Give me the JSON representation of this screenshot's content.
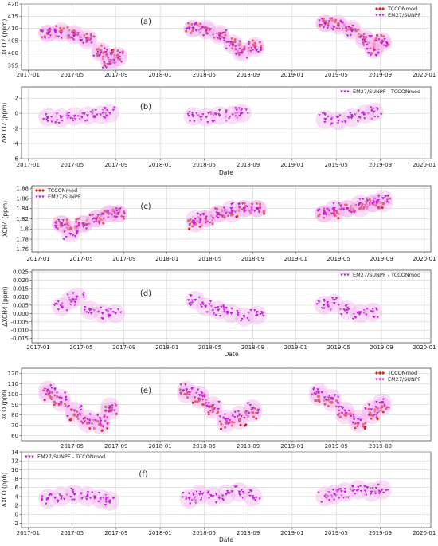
{
  "chart_data": [
    {
      "type": "scatter",
      "panel_label": "(a)",
      "ylabel": "XCO2 (ppm)",
      "xlabel": "",
      "ylim": [
        393,
        420
      ],
      "yticks": [
        395,
        400,
        405,
        410,
        415,
        420
      ],
      "xtick_labels": [
        "2017-01",
        "2017-05",
        "2017-09",
        "2018-01",
        "2018-05",
        "2018-09",
        "2019-01",
        "2019-05",
        "2019-09",
        "2020-01"
      ],
      "legend_position": "top-right",
      "series": [
        {
          "name": "TCCONmod",
          "color": "#d91c1c",
          "marker": "circle",
          "x": [
            2017.15,
            2017.25,
            2017.35,
            2017.45,
            2017.55,
            2017.62,
            2017.68,
            2018.25,
            2018.35,
            2018.45,
            2018.55,
            2018.62,
            2018.72,
            2019.25,
            2019.35,
            2019.45,
            2019.55,
            2019.62,
            2019.68
          ],
          "y": [
            408,
            409,
            408,
            406,
            401,
            397,
            399,
            410,
            410,
            408,
            404,
            401,
            403,
            412,
            412,
            410,
            406,
            402,
            405
          ]
        },
        {
          "name": "EM27/SUNPF",
          "color": "#c221d6",
          "marker": "triangle",
          "x": [
            2017.15,
            2017.25,
            2017.35,
            2017.45,
            2017.55,
            2017.62,
            2017.68,
            2018.25,
            2018.35,
            2018.45,
            2018.55,
            2018.62,
            2018.72,
            2019.25,
            2019.35,
            2019.45,
            2019.55,
            2019.62,
            2019.68
          ],
          "y": [
            408,
            408,
            407,
            405,
            400,
            396,
            398,
            410,
            409,
            407,
            403,
            400,
            402,
            412,
            411,
            409,
            405,
            401,
            404
          ]
        }
      ]
    },
    {
      "type": "scatter",
      "panel_label": "(b)",
      "ylabel": "ΔXCO2 (ppm)",
      "xlabel": "Date",
      "ylim": [
        -6,
        3.5
      ],
      "yticks": [
        -6,
        -4,
        -2,
        0,
        2
      ],
      "xtick_labels": [
        "2017-01",
        "2017-05",
        "2017-09",
        "2018-01",
        "2018-05",
        "2018-09",
        "2019-01",
        "2019-05",
        "2019-09",
        "2020-01"
      ],
      "legend_position": "top-right",
      "series": [
        {
          "name": "EM27/SUNPF - TCCONmod",
          "color": "#c221d6",
          "marker": "triangle",
          "x": [
            2017.15,
            2017.25,
            2017.35,
            2017.45,
            2017.55,
            2017.62,
            2018.25,
            2018.35,
            2018.45,
            2018.55,
            2018.62,
            2019.25,
            2019.35,
            2019.45,
            2019.55,
            2019.62
          ],
          "y": [
            -0.5,
            -0.6,
            -0.4,
            -0.3,
            -0.2,
            0.0,
            -0.4,
            -0.5,
            -0.3,
            -0.2,
            0.0,
            -0.8,
            -1.0,
            -0.6,
            -0.1,
            0.2
          ]
        }
      ]
    },
    {
      "type": "scatter",
      "panel_label": "(c)",
      "ylabel": "XCH4 (ppm)",
      "xlabel": "",
      "ylim": [
        1.755,
        1.885
      ],
      "yticks": [
        1.76,
        1.78,
        1.8,
        1.82,
        1.84,
        1.86,
        1.88
      ],
      "xtick_labels": [
        "2017-01",
        "2017-05",
        "2017-09",
        "2018-01",
        "2018-05",
        "2018-09",
        "2019-01",
        "2019-05",
        "2019-09",
        "2020-01"
      ],
      "legend_position": "top-left",
      "series": [
        {
          "name": "TCCONmod",
          "color": "#d91c1c",
          "marker": "circle",
          "x": [
            2017.18,
            2017.25,
            2017.35,
            2017.45,
            2017.55,
            2017.62,
            2018.22,
            2018.3,
            2018.4,
            2018.5,
            2018.6,
            2018.7,
            2019.22,
            2019.3,
            2019.4,
            2019.5,
            2019.6,
            2019.68
          ],
          "y": [
            1.81,
            1.8,
            1.81,
            1.82,
            1.83,
            1.83,
            1.81,
            1.82,
            1.83,
            1.83,
            1.84,
            1.84,
            1.83,
            1.83,
            1.84,
            1.84,
            1.85,
            1.85
          ]
        },
        {
          "name": "EM27/SUNPF",
          "color": "#c221d6",
          "marker": "triangle",
          "x": [
            2017.18,
            2017.25,
            2017.35,
            2017.45,
            2017.55,
            2017.62,
            2018.22,
            2018.3,
            2018.4,
            2018.5,
            2018.6,
            2018.7,
            2019.22,
            2019.3,
            2019.4,
            2019.5,
            2019.6,
            2019.68
          ],
          "y": [
            1.81,
            1.79,
            1.81,
            1.82,
            1.83,
            1.83,
            1.82,
            1.82,
            1.83,
            1.84,
            1.84,
            1.84,
            1.83,
            1.84,
            1.84,
            1.85,
            1.85,
            1.86
          ]
        }
      ]
    },
    {
      "type": "scatter",
      "panel_label": "(d)",
      "ylabel": "ΔXCH4 (ppm)",
      "xlabel": "Date",
      "ylim": [
        -0.0175,
        0.026
      ],
      "yticks": [
        -0.015,
        -0.01,
        -0.005,
        0.0,
        0.005,
        0.01,
        0.015,
        0.02,
        0.025
      ],
      "ytick_labels": [
        "-0.015",
        "-0.010",
        "-0.005",
        "0.000",
        "0.005",
        "0.010",
        "0.015",
        "0.020",
        "0.025"
      ],
      "xtick_labels": [
        "2017-01",
        "2017-05",
        "2017-09",
        "2018-01",
        "2018-05",
        "2018-09",
        "2019-01",
        "2019-05",
        "2019-09",
        "2020-01"
      ],
      "legend_position": "top-right",
      "series": [
        {
          "name": "EM27/SUNPF - TCCONmod",
          "color": "#c221d6",
          "marker": "triangle",
          "x": [
            2017.18,
            2017.25,
            2017.3,
            2017.4,
            2017.5,
            2017.6,
            2018.22,
            2018.3,
            2018.4,
            2018.5,
            2018.6,
            2018.7,
            2019.22,
            2019.3,
            2019.4,
            2019.5,
            2019.6
          ],
          "y": [
            0.004,
            0.008,
            0.01,
            0.002,
            0.0,
            0.0,
            0.008,
            0.004,
            0.002,
            0.0,
            -0.002,
            -0.001,
            0.005,
            0.006,
            0.002,
            0.0,
            0.001
          ]
        }
      ]
    },
    {
      "type": "scatter",
      "panel_label": "(e)",
      "ylabel": "XCO (ppb)",
      "xlabel": "",
      "ylim": [
        55,
        125
      ],
      "yticks": [
        60,
        70,
        80,
        90,
        100,
        110,
        120
      ],
      "xtick_labels": [
        "2017-05",
        "2017-09",
        "2018-01",
        "2018-05",
        "2018-09",
        "2019-01",
        "2019-05",
        "2019-09"
      ],
      "legend_position": "top-right",
      "series": [
        {
          "name": "TCCONmod",
          "color": "#d91c1c",
          "marker": "circle",
          "x": [
            2017.15,
            2017.25,
            2017.35,
            2017.45,
            2017.55,
            2017.62,
            2018.2,
            2018.3,
            2018.4,
            2018.5,
            2018.6,
            2018.7,
            2019.2,
            2019.3,
            2019.4,
            2019.5,
            2019.6,
            2019.68
          ],
          "y": [
            100,
            92,
            80,
            72,
            70,
            84,
            100,
            95,
            85,
            72,
            75,
            82,
            98,
            92,
            80,
            72,
            80,
            88
          ]
        },
        {
          "name": "EM27/SUNPF",
          "color": "#c221d6",
          "marker": "triangle",
          "x": [
            2017.15,
            2017.25,
            2017.35,
            2017.45,
            2017.55,
            2017.62,
            2018.2,
            2018.3,
            2018.4,
            2018.5,
            2018.6,
            2018.7,
            2019.2,
            2019.3,
            2019.4,
            2019.5,
            2019.6,
            2019.68
          ],
          "y": [
            104,
            96,
            84,
            76,
            74,
            88,
            104,
            99,
            89,
            76,
            80,
            86,
            102,
            96,
            84,
            76,
            85,
            92
          ]
        }
      ]
    },
    {
      "type": "scatter",
      "panel_label": "(f)",
      "ylabel": "ΔXCO (ppb)",
      "xlabel": "Date",
      "ylim": [
        -3,
        14
      ],
      "yticks": [
        -2,
        0,
        2,
        4,
        6,
        8,
        10,
        12,
        14
      ],
      "xtick_labels": [
        "2017-01",
        "2017-05",
        "2017-09",
        "2018-01",
        "2018-05",
        "2018-09",
        "2019-01",
        "2019-05",
        "2019-09",
        "2020-01"
      ],
      "legend_position": "top-left",
      "series": [
        {
          "name": "EM27/SUNPF - TCCONmod",
          "color": "#c221d6",
          "marker": "triangle",
          "x": [
            2017.15,
            2017.25,
            2017.35,
            2017.45,
            2017.55,
            2017.62,
            2018.22,
            2018.3,
            2018.4,
            2018.5,
            2018.6,
            2018.7,
            2019.25,
            2019.32,
            2019.4,
            2019.5,
            2019.6,
            2019.68
          ],
          "y": [
            3.5,
            4.0,
            4.5,
            4.0,
            3.5,
            3.0,
            3.5,
            4.5,
            4.0,
            4.5,
            5.0,
            4.0,
            4.0,
            4.5,
            5.0,
            5.5,
            5.0,
            5.5
          ]
        }
      ]
    }
  ]
}
